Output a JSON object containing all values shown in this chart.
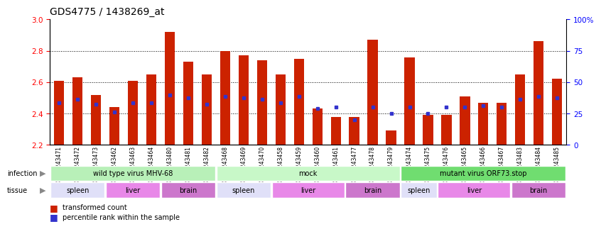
{
  "title": "GDS4775 / 1438269_at",
  "samples": [
    "GSM1243471",
    "GSM1243472",
    "GSM1243473",
    "GSM1243462",
    "GSM1243463",
    "GSM1243464",
    "GSM1243480",
    "GSM1243481",
    "GSM1243482",
    "GSM1243468",
    "GSM1243469",
    "GSM1243470",
    "GSM1243458",
    "GSM1243459",
    "GSM1243460",
    "GSM1243461",
    "GSM1243477",
    "GSM1243478",
    "GSM1243479",
    "GSM1243474",
    "GSM1243475",
    "GSM1243476",
    "GSM1243465",
    "GSM1243466",
    "GSM1243467",
    "GSM1243483",
    "GSM1243484",
    "GSM1243485"
  ],
  "red_values": [
    2.61,
    2.63,
    2.52,
    2.44,
    2.61,
    2.65,
    2.92,
    2.73,
    2.65,
    2.8,
    2.77,
    2.74,
    2.65,
    2.75,
    2.43,
    2.38,
    2.38,
    2.87,
    2.29,
    2.76,
    2.39,
    2.39,
    2.51,
    2.47,
    2.47,
    2.65,
    2.86,
    2.62
  ],
  "blue_values": [
    2.47,
    2.49,
    2.46,
    2.41,
    2.47,
    2.47,
    2.52,
    2.5,
    2.46,
    2.51,
    2.5,
    2.49,
    2.47,
    2.51,
    2.43,
    2.44,
    2.36,
    2.44,
    2.4,
    2.44,
    2.4,
    2.44,
    2.44,
    2.45,
    2.44,
    2.49,
    2.51,
    2.5
  ],
  "baseline": 2.2,
  "ylim_left": [
    2.2,
    3.0
  ],
  "ylim_right": [
    0,
    100
  ],
  "yticks_left": [
    2.2,
    2.4,
    2.6,
    2.8,
    3.0
  ],
  "yticks_right": [
    0,
    25,
    50,
    75,
    100
  ],
  "grid_lines": [
    2.4,
    2.6,
    2.8
  ],
  "infection_groups": [
    {
      "label": "wild type virus MHV-68",
      "start": 0,
      "end": 9,
      "color": "#b8f0b8"
    },
    {
      "label": "mock",
      "start": 9,
      "end": 19,
      "color": "#c8f8c8"
    },
    {
      "label": "mutant virus ORF73.stop",
      "start": 19,
      "end": 28,
      "color": "#70e070"
    }
  ],
  "tissue_groups": [
    {
      "label": "spleen",
      "start": 0,
      "end": 3,
      "color": "#e8e8f8"
    },
    {
      "label": "liver",
      "start": 3,
      "end": 6,
      "color": "#e890e8"
    },
    {
      "label": "brain",
      "start": 6,
      "end": 9,
      "color": "#dd77dd"
    },
    {
      "label": "spleen",
      "start": 9,
      "end": 12,
      "color": "#e8e8f8"
    },
    {
      "label": "liver",
      "start": 12,
      "end": 16,
      "color": "#e890e8"
    },
    {
      "label": "brain",
      "start": 16,
      "end": 19,
      "color": "#dd77dd"
    },
    {
      "label": "spleen",
      "start": 19,
      "end": 21,
      "color": "#e8e8f8"
    },
    {
      "label": "liver",
      "start": 21,
      "end": 25,
      "color": "#e890e8"
    },
    {
      "label": "brain",
      "start": 25,
      "end": 28,
      "color": "#dd77dd"
    }
  ],
  "bar_color": "#cc2200",
  "blue_color": "#3333cc",
  "background_color": "#ffffff",
  "bar_width": 0.55
}
